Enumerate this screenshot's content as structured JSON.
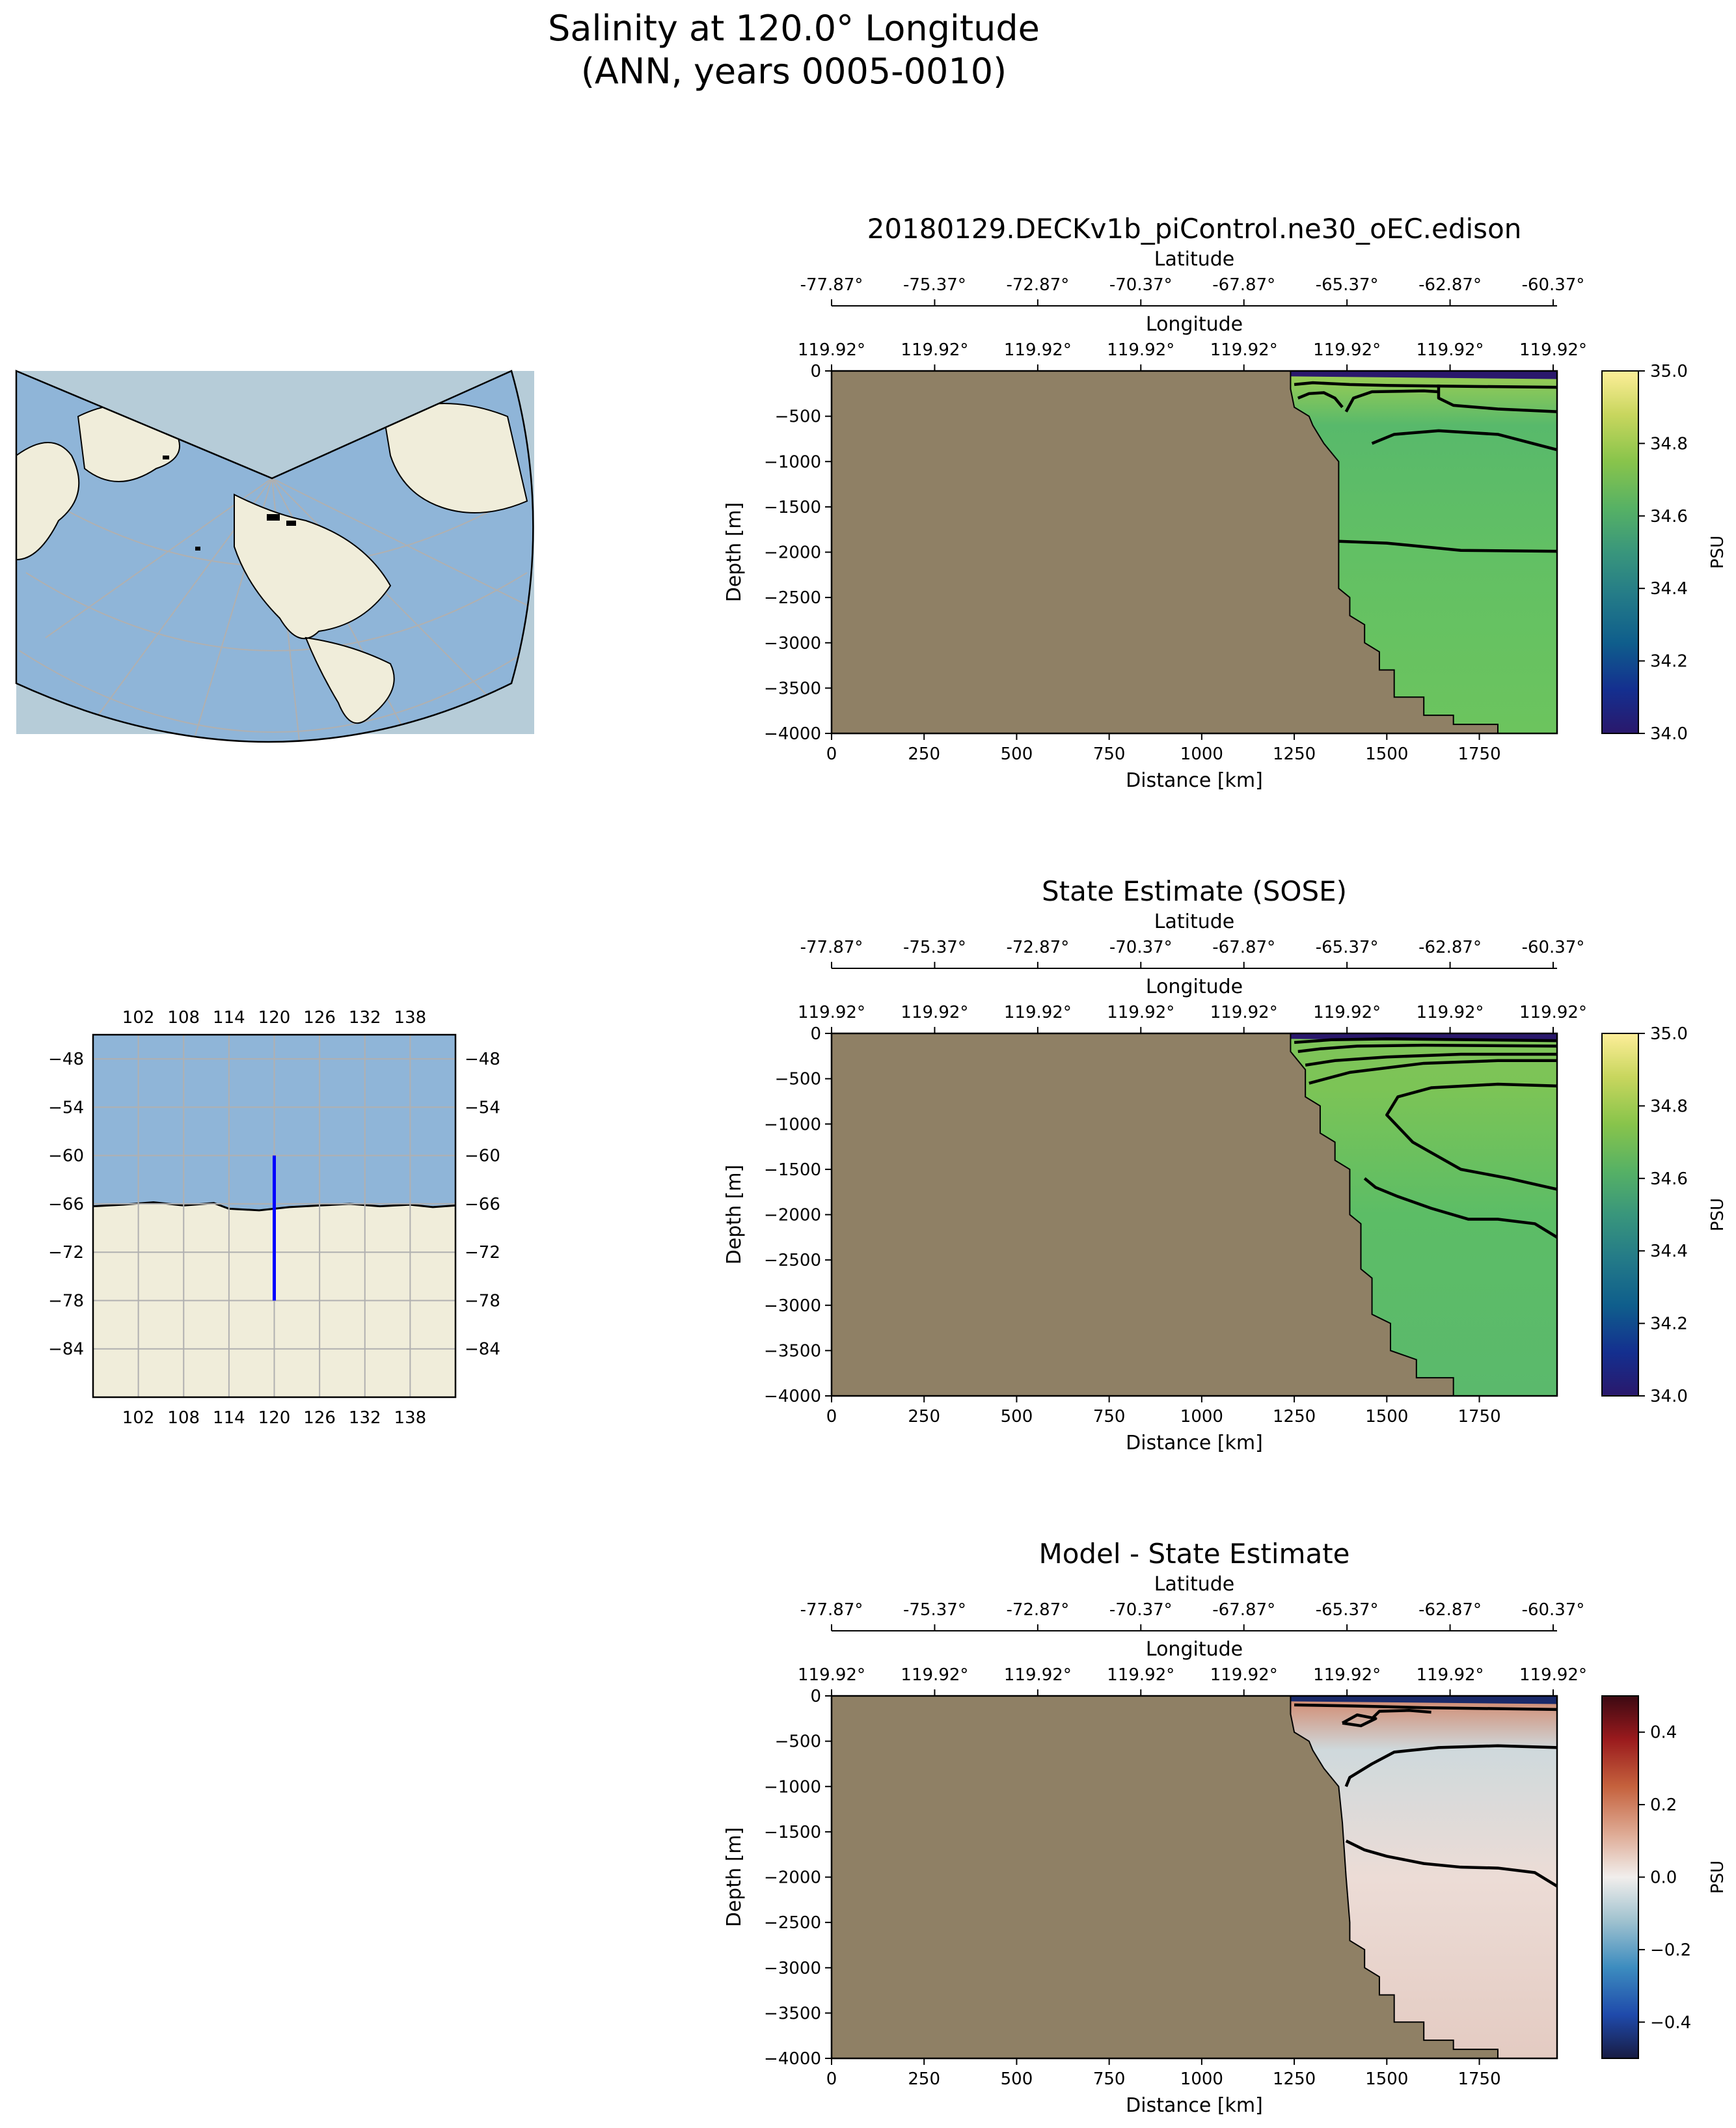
{
  "figure": {
    "title_line1": "Salinity at 120.0° Longitude",
    "title_line2": "(ANN, years 0005-0010)"
  },
  "colors": {
    "land": "#8f8065",
    "ocean_map": "#8fb5d8",
    "land_map": "#f0edda",
    "transect_line": "#0000ff",
    "grid": "#b0b0b0"
  },
  "inset_polar_map": {
    "projection": "lambert-conformal",
    "features": [
      "ocean",
      "continents",
      "graticule"
    ]
  },
  "inset_regional_map": {
    "x_ticks": [
      "102",
      "108",
      "114",
      "120",
      "126",
      "132",
      "138"
    ],
    "y_ticks": [
      "-48",
      "-54",
      "-60",
      "-66",
      "-72",
      "-78",
      "-84"
    ],
    "lon_range": [
      96,
      144
    ],
    "lat_range": [
      -90,
      -45
    ],
    "transect": {
      "lon": 120,
      "lat_start": -60,
      "lat_end": -78
    }
  },
  "chart_data": [
    {
      "type": "heatmap",
      "title": "20180129.DECKv1b_piControl.ne30_oEC.edison",
      "xlabel": "Distance [km]",
      "ylabel": "Depth [m]",
      "secondary_axes": [
        {
          "label": "Latitude",
          "ticks": [
            "-77.87°",
            "-75.37°",
            "-72.87°",
            "-70.37°",
            "-67.87°",
            "-65.37°",
            "-62.87°",
            "-60.37°"
          ]
        },
        {
          "label": "Longitude",
          "ticks": [
            "119.92°",
            "119.92°",
            "119.92°",
            "119.92°",
            "119.92°",
            "119.92°",
            "119.92°",
            "119.92°"
          ]
        }
      ],
      "x_ticks": [
        "0",
        "250",
        "500",
        "750",
        "1000",
        "1250",
        "1500",
        "1750"
      ],
      "y_ticks": [
        "0",
        "−500",
        "−1000",
        "−1500",
        "−2000",
        "−2500",
        "−3000",
        "−3500",
        "−4000"
      ],
      "xlim": [
        0,
        1960
      ],
      "ylim": [
        -4000,
        0
      ],
      "colorbar": {
        "label": "PSU",
        "range": [
          34.0,
          35.0
        ],
        "ticks": [
          "35.0",
          "34.8",
          "34.6",
          "34.4",
          "34.2",
          "34.0"
        ],
        "colormap": "haline"
      },
      "bathymetry": [
        [
          1240,
          -200
        ],
        [
          1250,
          -400
        ],
        [
          1290,
          -500
        ],
        [
          1300,
          -600
        ],
        [
          1330,
          -800
        ],
        [
          1370,
          -1000
        ],
        [
          1370,
          -2400
        ],
        [
          1400,
          -2500
        ],
        [
          1400,
          -2700
        ],
        [
          1440,
          -2800
        ],
        [
          1440,
          -3000
        ],
        [
          1480,
          -3100
        ],
        [
          1480,
          -3300
        ],
        [
          1520,
          -3300
        ],
        [
          1520,
          -3600
        ],
        [
          1600,
          -3600
        ],
        [
          1600,
          -3800
        ],
        [
          1680,
          -3800
        ],
        [
          1680,
          -3900
        ],
        [
          1800,
          -3900
        ],
        [
          1800,
          -4000
        ]
      ],
      "contours": [
        [
          [
            1250,
            -150
          ],
          [
            1300,
            -130
          ],
          [
            1350,
            -140
          ],
          [
            1400,
            -150
          ],
          [
            1500,
            -160
          ],
          [
            1700,
            -170
          ],
          [
            1960,
            -180
          ]
        ],
        [
          [
            1260,
            -300
          ],
          [
            1290,
            -250
          ],
          [
            1330,
            -240
          ],
          [
            1360,
            -300
          ],
          [
            1380,
            -400
          ]
        ],
        [
          [
            1390,
            -450
          ],
          [
            1410,
            -300
          ],
          [
            1460,
            -230
          ],
          [
            1600,
            -220
          ],
          [
            1640,
            -230
          ]
        ],
        [
          [
            1640,
            -150
          ],
          [
            1640,
            -300
          ],
          [
            1680,
            -380
          ],
          [
            1800,
            -420
          ],
          [
            1960,
            -450
          ]
        ],
        [
          [
            1460,
            -800
          ],
          [
            1520,
            -700
          ],
          [
            1640,
            -660
          ],
          [
            1800,
            -700
          ],
          [
            1960,
            -870
          ]
        ],
        [
          [
            1370,
            -1880
          ],
          [
            1500,
            -1900
          ],
          [
            1700,
            -1980
          ],
          [
            1960,
            -1990
          ]
        ]
      ]
    },
    {
      "type": "heatmap",
      "title": "State Estimate (SOSE)",
      "xlabel": "Distance [km]",
      "ylabel": "Depth [m]",
      "secondary_axes": [
        {
          "label": "Latitude",
          "ticks": [
            "-77.87°",
            "-75.37°",
            "-72.87°",
            "-70.37°",
            "-67.87°",
            "-65.37°",
            "-62.87°",
            "-60.37°"
          ]
        },
        {
          "label": "Longitude",
          "ticks": [
            "119.92°",
            "119.92°",
            "119.92°",
            "119.92°",
            "119.92°",
            "119.92°",
            "119.92°",
            "119.92°"
          ]
        }
      ],
      "x_ticks": [
        "0",
        "250",
        "500",
        "750",
        "1000",
        "1250",
        "1500",
        "1750"
      ],
      "y_ticks": [
        "0",
        "−500",
        "−1000",
        "−1500",
        "−2000",
        "−2500",
        "−3000",
        "−3500",
        "−4000"
      ],
      "xlim": [
        0,
        1960
      ],
      "ylim": [
        -4000,
        0
      ],
      "colorbar": {
        "label": "PSU",
        "range": [
          34.0,
          35.0
        ],
        "ticks": [
          "35.0",
          "34.8",
          "34.6",
          "34.4",
          "34.2",
          "34.0"
        ],
        "colormap": "haline"
      },
      "bathymetry": [
        [
          1240,
          -200
        ],
        [
          1280,
          -400
        ],
        [
          1280,
          -700
        ],
        [
          1320,
          -800
        ],
        [
          1320,
          -1100
        ],
        [
          1360,
          -1200
        ],
        [
          1360,
          -1400
        ],
        [
          1400,
          -1500
        ],
        [
          1400,
          -2000
        ],
        [
          1430,
          -2100
        ],
        [
          1430,
          -2600
        ],
        [
          1460,
          -2700
        ],
        [
          1460,
          -3100
        ],
        [
          1510,
          -3200
        ],
        [
          1510,
          -3500
        ],
        [
          1580,
          -3600
        ],
        [
          1580,
          -3800
        ],
        [
          1680,
          -3800
        ],
        [
          1680,
          -4000
        ]
      ],
      "contours": [
        [
          [
            1250,
            -100
          ],
          [
            1350,
            -70
          ],
          [
            1500,
            -60
          ],
          [
            1960,
            -80
          ]
        ],
        [
          [
            1260,
            -200
          ],
          [
            1320,
            -170
          ],
          [
            1420,
            -140
          ],
          [
            1600,
            -130
          ],
          [
            1960,
            -140
          ]
        ],
        [
          [
            1280,
            -350
          ],
          [
            1360,
            -300
          ],
          [
            1500,
            -260
          ],
          [
            1700,
            -230
          ],
          [
            1960,
            -230
          ]
        ],
        [
          [
            1290,
            -550
          ],
          [
            1400,
            -430
          ],
          [
            1600,
            -330
          ],
          [
            1800,
            -300
          ],
          [
            1960,
            -300
          ]
        ],
        [
          [
            1960,
            -580
          ],
          [
            1800,
            -560
          ],
          [
            1620,
            -600
          ],
          [
            1530,
            -700
          ],
          [
            1500,
            -900
          ],
          [
            1570,
            -1200
          ],
          [
            1700,
            -1500
          ],
          [
            1830,
            -1600
          ],
          [
            1960,
            -1720
          ]
        ],
        [
          [
            1960,
            -2250
          ],
          [
            1900,
            -2100
          ],
          [
            1800,
            -2050
          ],
          [
            1720,
            -2050
          ],
          [
            1620,
            -1930
          ],
          [
            1530,
            -1800
          ],
          [
            1470,
            -1700
          ],
          [
            1440,
            -1600
          ]
        ]
      ]
    },
    {
      "type": "heatmap",
      "title": "Model - State Estimate",
      "xlabel": "Distance [km]",
      "ylabel": "Depth [m]",
      "secondary_axes": [
        {
          "label": "Latitude",
          "ticks": [
            "-77.87°",
            "-75.37°",
            "-72.87°",
            "-70.37°",
            "-67.87°",
            "-65.37°",
            "-62.87°",
            "-60.37°"
          ]
        },
        {
          "label": "Longitude",
          "ticks": [
            "119.92°",
            "119.92°",
            "119.92°",
            "119.92°",
            "119.92°",
            "119.92°",
            "119.92°",
            "119.92°"
          ]
        }
      ],
      "x_ticks": [
        "0",
        "250",
        "500",
        "750",
        "1000",
        "1250",
        "1500",
        "1750"
      ],
      "y_ticks": [
        "0",
        "−500",
        "−1000",
        "−1500",
        "−2000",
        "−2500",
        "−3000",
        "−3500",
        "−4000"
      ],
      "xlim": [
        0,
        1960
      ],
      "ylim": [
        -4000,
        0
      ],
      "colorbar": {
        "label": "PSU",
        "range": [
          -0.5,
          0.5
        ],
        "ticks": [
          "0.4",
          "0.2",
          "0.0",
          "−0.2",
          "−0.4"
        ],
        "colormap": "balance"
      },
      "bathymetry": [
        [
          1240,
          -200
        ],
        [
          1250,
          -400
        ],
        [
          1290,
          -500
        ],
        [
          1300,
          -600
        ],
        [
          1330,
          -800
        ],
        [
          1370,
          -1000
        ],
        [
          1380,
          -1400
        ],
        [
          1390,
          -2000
        ],
        [
          1400,
          -2500
        ],
        [
          1400,
          -2700
        ],
        [
          1440,
          -2800
        ],
        [
          1440,
          -3000
        ],
        [
          1480,
          -3100
        ],
        [
          1480,
          -3300
        ],
        [
          1520,
          -3300
        ],
        [
          1520,
          -3600
        ],
        [
          1600,
          -3600
        ],
        [
          1600,
          -3800
        ],
        [
          1680,
          -3800
        ],
        [
          1680,
          -3900
        ],
        [
          1800,
          -3900
        ],
        [
          1800,
          -4000
        ]
      ],
      "contours": [
        [
          [
            1250,
            -100
          ],
          [
            1400,
            -110
          ],
          [
            1600,
            -130
          ],
          [
            1960,
            -150
          ]
        ],
        [
          [
            1380,
            -300
          ],
          [
            1420,
            -210
          ],
          [
            1470,
            -250
          ],
          [
            1430,
            -330
          ],
          [
            1380,
            -300
          ]
        ],
        [
          [
            1460,
            -250
          ],
          [
            1480,
            -170
          ],
          [
            1560,
            -160
          ],
          [
            1620,
            -180
          ]
        ],
        [
          [
            1960,
            -570
          ],
          [
            1800,
            -550
          ],
          [
            1640,
            -570
          ],
          [
            1520,
            -620
          ],
          [
            1460,
            -750
          ],
          [
            1400,
            -900
          ],
          [
            1390,
            -1000
          ]
        ],
        [
          [
            1390,
            -1600
          ],
          [
            1440,
            -1700
          ],
          [
            1500,
            -1770
          ],
          [
            1600,
            -1850
          ],
          [
            1700,
            -1890
          ],
          [
            1800,
            -1900
          ],
          [
            1900,
            -1950
          ],
          [
            1960,
            -2100
          ]
        ]
      ]
    }
  ]
}
